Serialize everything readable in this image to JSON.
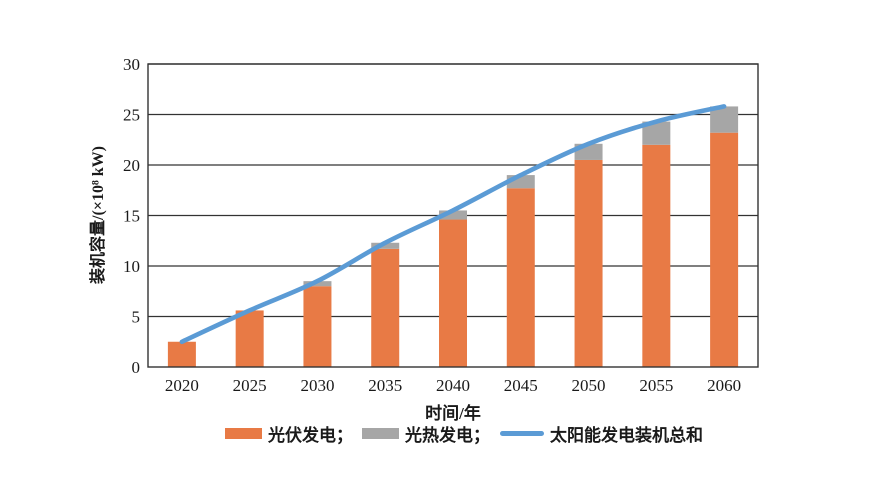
{
  "chart_data": {
    "type": "bar",
    "stacked": true,
    "categories": [
      "2020",
      "2025",
      "2030",
      "2035",
      "2040",
      "2045",
      "2050",
      "2055",
      "2060"
    ],
    "series": [
      {
        "name": "光伏发电",
        "kind": "bar",
        "color": "#E87A45",
        "values": [
          2.5,
          5.6,
          8.0,
          11.7,
          14.6,
          17.7,
          20.5,
          22.0,
          23.2
        ]
      },
      {
        "name": "光热发电",
        "kind": "bar",
        "color": "#A6A6A6",
        "values": [
          0,
          0,
          0.5,
          0.6,
          0.9,
          1.3,
          1.6,
          2.3,
          2.6
        ]
      },
      {
        "name": "太阳能发电装机总和",
        "kind": "line",
        "color": "#5B9BD5",
        "values": [
          2.5,
          5.6,
          8.5,
          12.3,
          15.5,
          19.0,
          22.1,
          24.3,
          25.8
        ]
      }
    ],
    "xlabel": "时间/年",
    "ylabel": "装机容量/(×10⁸ kW)",
    "ylim": [
      0,
      30
    ],
    "yticks": [
      0,
      5,
      10,
      15,
      20,
      25,
      30
    ],
    "grid": true,
    "axis_color": "#333333",
    "legend_position": "bottom",
    "legend_labels": [
      "光伏发电；",
      "光热发电；",
      "太阳能发电装机总和"
    ]
  }
}
